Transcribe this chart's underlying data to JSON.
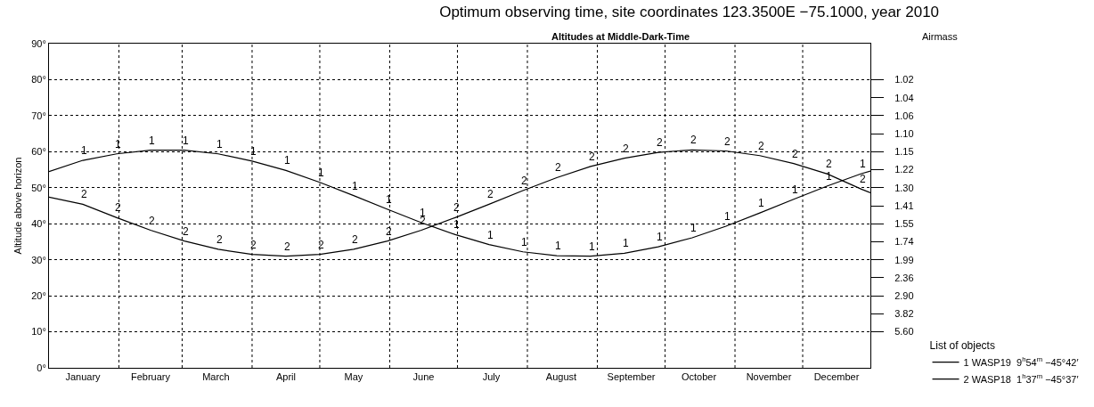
{
  "chart_data": {
    "type": "line",
    "title": "Optimum observing time, site coordinates 123.3500E −75.1000, year 2010",
    "subtitle": "Altitudes at Middle-Dark-Time",
    "ylabel": "Altitude above horizon",
    "legend_title": "List of objects",
    "x": [
      "2010-01-01",
      "2010-01-16",
      "2010-01-31",
      "2010-02-15",
      "2010-03-02",
      "2010-03-17",
      "2010-04-01",
      "2010-04-16",
      "2010-05-01",
      "2010-05-16",
      "2010-05-31",
      "2010-06-15",
      "2010-06-30",
      "2010-07-15",
      "2010-07-30",
      "2010-08-14",
      "2010-08-29",
      "2010-09-13",
      "2010-09-28",
      "2010-10-13",
      "2010-10-28",
      "2010-11-12",
      "2010-11-27",
      "2010-12-12",
      "2010-12-27",
      "2010-12-31"
    ],
    "series": [
      {
        "name": "1 WASP19  9$^{h}$54$^{m}$ −45°42′",
        "color": "#000000",
        "values": [
          54.5,
          57.6,
          59.4,
          60.4,
          60.4,
          59.4,
          57.4,
          54.8,
          51.5,
          47.8,
          44.0,
          40.3,
          37.0,
          34.2,
          32.2,
          31.1,
          31.0,
          31.8,
          33.6,
          36.1,
          39.3,
          43.0,
          46.8,
          50.5,
          53.9,
          54.6
        ]
      },
      {
        "name": "2 WASP18  1$^{h}$37$^{m}$ −45°37′",
        "color": "#000000",
        "values": [
          47.4,
          45.4,
          41.7,
          38.2,
          35.2,
          32.9,
          31.5,
          31.0,
          31.5,
          32.9,
          35.2,
          38.2,
          41.7,
          45.4,
          49.2,
          52.8,
          55.9,
          58.2,
          59.8,
          60.5,
          60.2,
          58.9,
          56.7,
          53.8,
          49.6,
          48.6
        ]
      }
    ],
    "annotations": [
      "Airmass",
      {
        "text": "1",
        "x": "2010-01-16",
        "y": 57.6
      },
      {
        "text": "1",
        "x": "2010-01-31",
        "y": 59.4
      },
      {
        "text": "1",
        "x": "2010-02-15",
        "y": 60.4
      },
      {
        "text": "1",
        "x": "2010-03-02",
        "y": 60.4
      },
      {
        "text": "1",
        "x": "2010-03-17",
        "y": 59.4
      },
      {
        "text": "1",
        "x": "2010-04-01",
        "y": 57.4
      },
      {
        "text": "1",
        "x": "2010-04-16",
        "y": 54.8
      },
      {
        "text": "1",
        "x": "2010-05-01",
        "y": 51.5
      },
      {
        "text": "1",
        "x": "2010-05-16",
        "y": 47.8
      },
      {
        "text": "1",
        "x": "2010-05-31",
        "y": 44.0
      },
      {
        "text": "1",
        "x": "2010-06-15",
        "y": 40.3
      },
      {
        "text": "1",
        "x": "2010-06-30",
        "y": 37.0
      },
      {
        "text": "1",
        "x": "2010-07-15",
        "y": 34.2
      },
      {
        "text": "1",
        "x": "2010-07-30",
        "y": 32.2
      },
      {
        "text": "1",
        "x": "2010-08-14",
        "y": 31.1
      },
      {
        "text": "1",
        "x": "2010-08-29",
        "y": 31.0
      },
      {
        "text": "1",
        "x": "2010-09-13",
        "y": 31.8
      },
      {
        "text": "1",
        "x": "2010-09-28",
        "y": 33.6
      },
      {
        "text": "1",
        "x": "2010-10-13",
        "y": 36.1
      },
      {
        "text": "1",
        "x": "2010-10-28",
        "y": 39.3
      },
      {
        "text": "1",
        "x": "2010-11-12",
        "y": 43.0
      },
      {
        "text": "1",
        "x": "2010-11-27",
        "y": 46.8
      },
      {
        "text": "1",
        "x": "2010-12-12",
        "y": 50.5
      },
      {
        "text": "1",
        "x": "2010-12-27",
        "y": 53.9
      },
      {
        "text": "2",
        "x": "2010-01-16",
        "y": 45.4
      },
      {
        "text": "2",
        "x": "2010-01-31",
        "y": 41.7
      },
      {
        "text": "2",
        "x": "2010-02-15",
        "y": 38.2
      },
      {
        "text": "2",
        "x": "2010-03-02",
        "y": 35.2
      },
      {
        "text": "2",
        "x": "2010-03-17",
        "y": 32.9
      },
      {
        "text": "2",
        "x": "2010-04-01",
        "y": 31.5
      },
      {
        "text": "2",
        "x": "2010-04-16",
        "y": 31.0
      },
      {
        "text": "2",
        "x": "2010-05-01",
        "y": 31.5
      },
      {
        "text": "2",
        "x": "2010-05-16",
        "y": 32.9
      },
      {
        "text": "2",
        "x": "2010-05-31",
        "y": 35.2
      },
      {
        "text": "2",
        "x": "2010-06-15",
        "y": 38.2
      },
      {
        "text": "2",
        "x": "2010-06-30",
        "y": 41.7
      },
      {
        "text": "2",
        "x": "2010-07-15",
        "y": 45.4
      },
      {
        "text": "2",
        "x": "2010-07-30",
        "y": 49.2
      },
      {
        "text": "2",
        "x": "2010-08-14",
        "y": 52.8
      },
      {
        "text": "2",
        "x": "2010-08-29",
        "y": 55.9
      },
      {
        "text": "2",
        "x": "2010-09-13",
        "y": 58.2
      },
      {
        "text": "2",
        "x": "2010-09-28",
        "y": 59.8
      },
      {
        "text": "2",
        "x": "2010-10-13",
        "y": 60.5
      },
      {
        "text": "2",
        "x": "2010-10-28",
        "y": 60.2
      },
      {
        "text": "2",
        "x": "2010-11-12",
        "y": 58.9
      },
      {
        "text": "2",
        "x": "2010-11-27",
        "y": 56.7
      },
      {
        "text": "2",
        "x": "2010-12-12",
        "y": 53.8
      },
      {
        "text": "2",
        "x": "2010-12-27",
        "y": 49.6
      }
    ],
    "xlim": [
      "2010-01-01",
      "2010-12-31"
    ],
    "xticks": [
      {
        "value": "2010-01-16",
        "label": "January"
      },
      {
        "value": "2010-02-01",
        "label": null
      },
      {
        "value": "2010-02-15",
        "label": "February"
      },
      {
        "value": "2010-03-01",
        "label": null
      },
      {
        "value": "2010-03-16",
        "label": "March"
      },
      {
        "value": "2010-04-01",
        "label": null
      },
      {
        "value": "2010-04-16",
        "label": "April"
      },
      {
        "value": "2010-05-01",
        "label": null
      },
      {
        "value": "2010-05-16",
        "label": "May"
      },
      {
        "value": "2010-06-01",
        "label": null
      },
      {
        "value": "2010-06-16",
        "label": "June"
      },
      {
        "value": "2010-07-01",
        "label": null
      },
      {
        "value": "2010-07-16",
        "label": "July"
      },
      {
        "value": "2010-08-01",
        "label": null
      },
      {
        "value": "2010-08-16",
        "label": "August"
      },
      {
        "value": "2010-09-01",
        "label": null
      },
      {
        "value": "2010-09-16",
        "label": "September"
      },
      {
        "value": "2010-10-01",
        "label": null
      },
      {
        "value": "2010-10-16",
        "label": "October"
      },
      {
        "value": "2010-11-01",
        "label": null
      },
      {
        "value": "2010-11-16",
        "label": "November"
      },
      {
        "value": "2010-12-01",
        "label": null
      },
      {
        "value": "2010-12-16",
        "label": "December"
      }
    ],
    "ylim": [
      0,
      90
    ],
    "yticks": [
      {
        "value": 0,
        "label": "0°"
      },
      {
        "value": 10,
        "label": "10°"
      },
      {
        "value": 20,
        "label": "20°"
      },
      {
        "value": 30,
        "label": "30°"
      },
      {
        "value": 40,
        "label": "40°"
      },
      {
        "value": 50,
        "label": "50°"
      },
      {
        "value": 60,
        "label": "60°"
      },
      {
        "value": 70,
        "label": "70°"
      },
      {
        "value": 80,
        "label": "80°"
      },
      {
        "value": 90,
        "label": "90°"
      }
    ],
    "y2_categories": [
      null,
      null,
      "1.02",
      "1.04",
      "1.06",
      "1.10",
      "1.15",
      "1.22",
      "1.30",
      "1.41",
      "1.55",
      "1.74",
      "1.99",
      "2.36",
      "2.90",
      "3.82",
      "5.60",
      null,
      null
    ],
    "grid": true,
    "legend": "bottom right",
    "marker": "none",
    "line_style": "solid"
  }
}
